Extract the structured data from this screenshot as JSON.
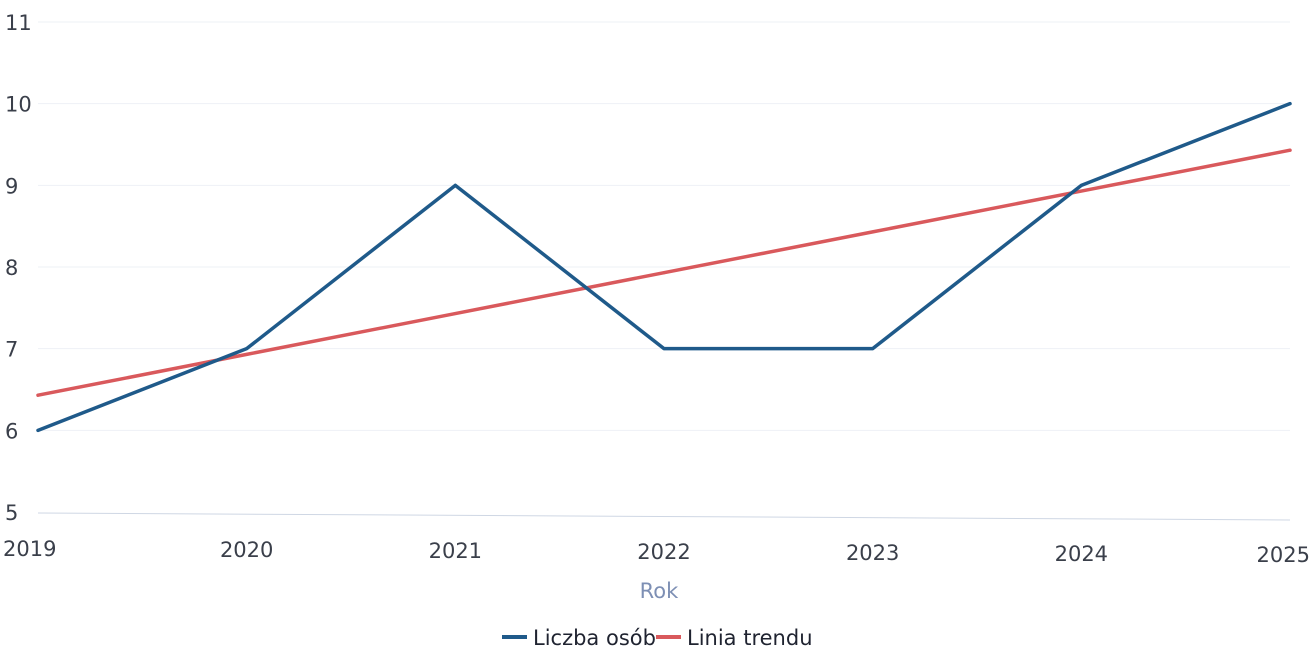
{
  "chart_data": {
    "type": "line",
    "x": [
      2019,
      2020,
      2021,
      2022,
      2023,
      2024,
      2025
    ],
    "xlabel": "Rok",
    "ylabel": "",
    "ylim": [
      5,
      11
    ],
    "yticks": [
      5,
      6,
      7,
      8,
      9,
      10,
      11
    ],
    "grid": true,
    "legend_position": "bottom-center",
    "series": [
      {
        "name": "Liczba osób",
        "color": "#1f5a8a",
        "values": [
          6.0,
          7.0,
          9.0,
          7.0,
          7.0,
          9.0,
          10.0
        ]
      },
      {
        "name": "Linia trendu",
        "color": "#d9595c",
        "values": [
          6.43,
          6.93,
          7.43,
          7.93,
          8.43,
          8.93,
          9.43
        ]
      }
    ]
  }
}
